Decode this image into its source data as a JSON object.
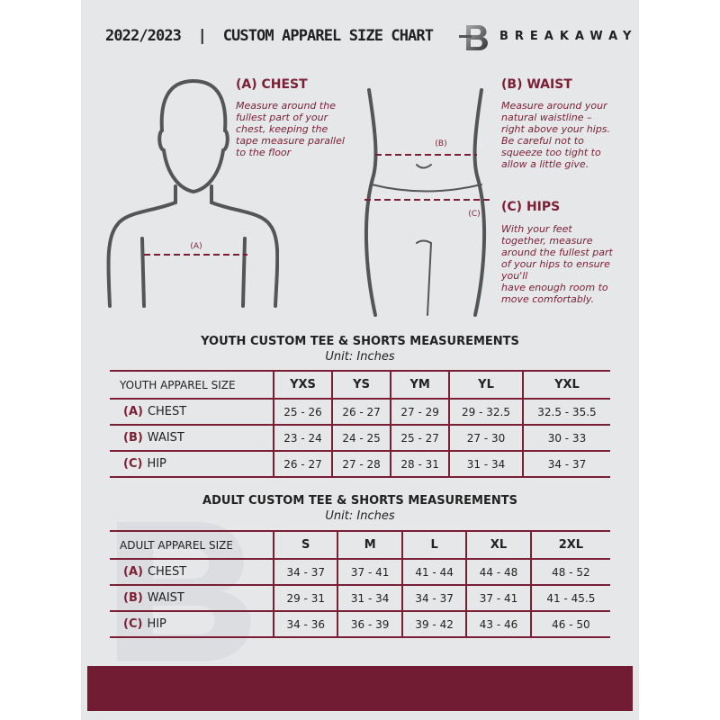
{
  "header": {
    "title": "2022/2023  |  CUSTOM APPAREL SIZE CHART",
    "brand": "BREAKAWAY"
  },
  "colors": {
    "accent": "#7a1f35",
    "background": "#e6e7e9",
    "band": "#721c33"
  },
  "sections": {
    "chest": {
      "heading": "(A) CHEST",
      "text": "Measure around the\nfullest part of your\nchest, keeping the\ntape measure parallel\nto the floor",
      "marker": "(A)"
    },
    "waist": {
      "heading": "(B) WAIST",
      "text": "Measure around your\nnatural waistline –\nright above your hips.\nBe careful not to\nsqueeze too tight to\nallow a little give.",
      "marker": "(B)"
    },
    "hips": {
      "heading": "(C) HIPS",
      "text": "With your feet\ntogether, measure\naround the fullest part\nof your hips to ensure\nyou'll\nhave enough room to\nmove comfortably.",
      "marker": "(C)"
    }
  },
  "youth": {
    "title": "YOUTH CUSTOM TEE & SHORTS MEASUREMENTS",
    "unit": "Unit: Inches",
    "header": [
      "YOUTH APPAREL SIZE",
      "YXS",
      "YS",
      "YM",
      "YL",
      "YXL"
    ],
    "rows": [
      {
        "letter": "(A)",
        "label": "CHEST",
        "values": [
          "25 - 26",
          "26 - 27",
          "27 - 29",
          "29 - 32.5",
          "32.5 - 35.5"
        ]
      },
      {
        "letter": "(B)",
        "label": "WAIST",
        "values": [
          "23 - 24",
          "24 - 25",
          "25 - 27",
          "27 - 30",
          "30 - 33"
        ]
      },
      {
        "letter": "(C)",
        "label": "HIP",
        "values": [
          "26 - 27",
          "27 - 28",
          "28 - 31",
          "31 - 34",
          "34 - 37"
        ]
      }
    ]
  },
  "adult": {
    "title": "ADULT CUSTOM TEE & SHORTS MEASUREMENTS",
    "unit": "Unit: Inches",
    "header": [
      "ADULT APPAREL SIZE",
      "S",
      "M",
      "L",
      "XL",
      "2XL"
    ],
    "rows": [
      {
        "letter": "(A)",
        "label": "CHEST",
        "values": [
          "34 - 37",
          "37 - 41",
          "41 - 44",
          "44 - 48",
          "48 - 52"
        ]
      },
      {
        "letter": "(B)",
        "label": "WAIST",
        "values": [
          "29 - 31",
          "31 - 34",
          "34 - 37",
          "37 - 41",
          "41 - 45.5"
        ]
      },
      {
        "letter": "(C)",
        "label": "HIP",
        "values": [
          "34 - 36",
          "36 - 39",
          "39 - 42",
          "43 - 46",
          "46 - 50"
        ]
      }
    ]
  }
}
